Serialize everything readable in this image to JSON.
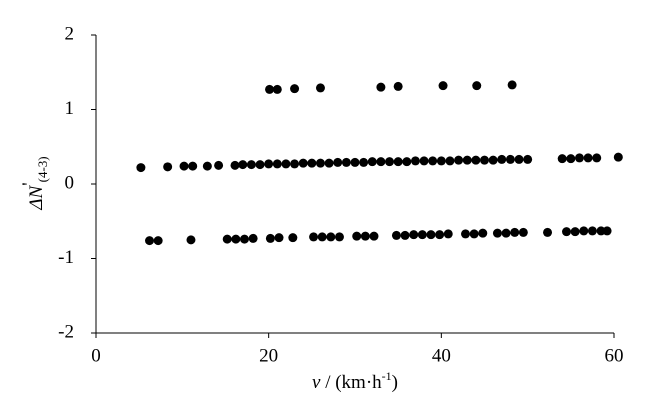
{
  "chart_data": {
    "type": "scatter",
    "xlabel_parts": [
      "v",
      " / (km·h",
      "-1",
      ")"
    ],
    "ylabel_parts": [
      "ΔN",
      "'",
      "(4-3)"
    ],
    "xlim": [
      0,
      60
    ],
    "ylim": [
      -2,
      2
    ],
    "xticks": [
      0,
      20,
      40,
      60
    ],
    "yticks": [
      -2,
      -1,
      0,
      1,
      2
    ],
    "grid": false,
    "series": [
      {
        "color": "#000000",
        "x": [
          20.1,
          21.0,
          23.0,
          26.0,
          33.0,
          35.0,
          40.2,
          44.1,
          48.2
        ],
        "values": [
          1.27,
          1.27,
          1.28,
          1.29,
          1.3,
          1.31,
          1.32,
          1.32,
          1.33
        ]
      },
      {
        "color": "#000000",
        "x": [
          5.2,
          8.3,
          10.2,
          11.2,
          12.9,
          14.2,
          16.1,
          17,
          18,
          19,
          20,
          21,
          22,
          23,
          24,
          25,
          26,
          27,
          28,
          29,
          30,
          31,
          32,
          33,
          34,
          35,
          36,
          37,
          38,
          39,
          40,
          41,
          42,
          43,
          44,
          45,
          46,
          47,
          48,
          49,
          50,
          54,
          55,
          56,
          57,
          58,
          60.5
        ],
        "values": [
          0.22,
          0.23,
          0.24,
          0.24,
          0.24,
          0.25,
          0.25,
          0.26,
          0.26,
          0.26,
          0.27,
          0.27,
          0.27,
          0.27,
          0.28,
          0.28,
          0.28,
          0.28,
          0.29,
          0.29,
          0.29,
          0.29,
          0.3,
          0.3,
          0.3,
          0.3,
          0.3,
          0.31,
          0.31,
          0.31,
          0.31,
          0.31,
          0.32,
          0.32,
          0.32,
          0.32,
          0.32,
          0.33,
          0.33,
          0.33,
          0.33,
          0.34,
          0.34,
          0.35,
          0.35,
          0.35,
          0.36
        ]
      },
      {
        "color": "#000000",
        "x": [
          6.2,
          7.2,
          11,
          15.2,
          16.2,
          17.2,
          18.2,
          20.2,
          21.2,
          22.8,
          25.2,
          26.2,
          27.2,
          28.2,
          30.2,
          31.2,
          32.2,
          34.8,
          35.8,
          36.8,
          37.8,
          38.8,
          39.8,
          40.8,
          42.8,
          43.8,
          44.8,
          46.5,
          47.5,
          48.5,
          49.5,
          52.3,
          54.5,
          55.5,
          56.5,
          57.5,
          58.5,
          59.2
        ],
        "values": [
          -0.76,
          -0.76,
          -0.75,
          -0.74,
          -0.74,
          -0.74,
          -0.73,
          -0.73,
          -0.72,
          -0.72,
          -0.71,
          -0.71,
          -0.71,
          -0.71,
          -0.7,
          -0.7,
          -0.7,
          -0.69,
          -0.69,
          -0.68,
          -0.68,
          -0.68,
          -0.68,
          -0.67,
          -0.67,
          -0.67,
          -0.66,
          -0.66,
          -0.66,
          -0.65,
          -0.65,
          -0.65,
          -0.64,
          -0.64,
          -0.63,
          -0.63,
          -0.63,
          -0.63
        ]
      }
    ]
  }
}
